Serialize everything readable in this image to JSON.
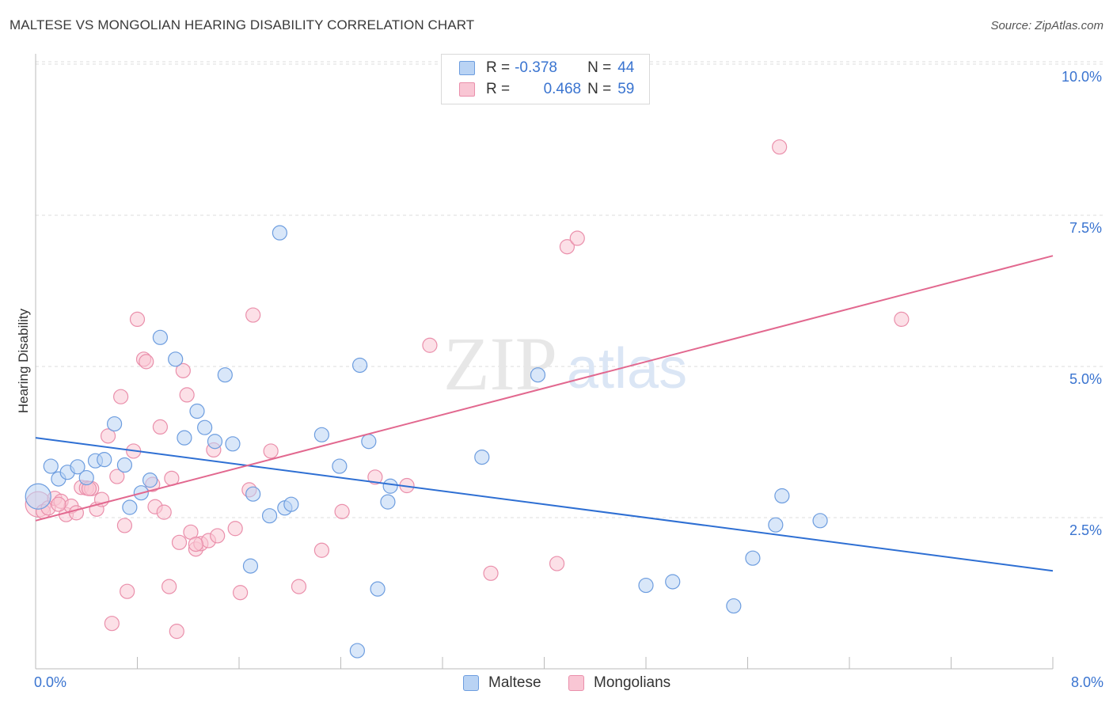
{
  "header": {
    "title": "MALTESE VS MONGOLIAN HEARING DISABILITY CORRELATION CHART",
    "source": "Source: ZipAtlas.com"
  },
  "watermark": {
    "zip": "ZIP",
    "atlas": "atlas"
  },
  "legend_top": {
    "rows": [
      {
        "r_label": "R =",
        "r_value": "-0.378",
        "n_label": "N =",
        "n_value": "44"
      },
      {
        "r_label": "R =",
        "r_value": "0.468",
        "n_label": "N =",
        "n_value": "59"
      }
    ]
  },
  "legend_bottom": {
    "items": [
      "Maltese",
      "Mongolians"
    ]
  },
  "axis_labels": {
    "x_min": "0.0%",
    "x_max": "8.0%",
    "ylabel": "Hearing Disability"
  },
  "yticks": [
    "2.5%",
    "5.0%",
    "7.5%",
    "10.0%"
  ],
  "colors": {
    "blue_fill": "#b9d3f4",
    "blue_stroke": "#6d9ddf",
    "blue_line": "#2e6fd3",
    "pink_fill": "#f9c6d4",
    "pink_stroke": "#ea8fab",
    "pink_line": "#e2688f",
    "tick_text": "#3a74d0",
    "grid": "#dddddd"
  },
  "chart_data": {
    "type": "scatter",
    "title": "MALTESE VS MONGOLIAN HEARING DISABILITY CORRELATION CHART",
    "xlabel": "",
    "ylabel": "Hearing Disability",
    "xlim": [
      0,
      8
    ],
    "ylim": [
      0,
      10.2
    ],
    "y_ticks": [
      2.5,
      5.0,
      7.5,
      10.0
    ],
    "grid": true,
    "legend": "top-center",
    "series": [
      {
        "name": "Maltese",
        "color": "#6d9ddf",
        "r": -0.378,
        "n": 44,
        "trend": {
          "x": [
            0,
            8
          ],
          "y": [
            3.82,
            1.62
          ]
        },
        "points": [
          [
            0.02,
            2.85
          ],
          [
            0.12,
            3.35
          ],
          [
            0.18,
            3.14
          ],
          [
            0.25,
            3.25
          ],
          [
            0.33,
            3.34
          ],
          [
            0.4,
            3.16
          ],
          [
            0.47,
            3.44
          ],
          [
            0.54,
            3.46
          ],
          [
            0.62,
            4.05
          ],
          [
            0.7,
            3.37
          ],
          [
            0.74,
            2.67
          ],
          [
            0.83,
            2.91
          ],
          [
            0.9,
            3.12
          ],
          [
            0.98,
            5.48
          ],
          [
            1.1,
            5.12
          ],
          [
            1.17,
            3.82
          ],
          [
            1.27,
            4.26
          ],
          [
            1.33,
            3.99
          ],
          [
            1.41,
            3.76
          ],
          [
            1.49,
            4.86
          ],
          [
            1.55,
            3.72
          ],
          [
            1.69,
            1.7
          ],
          [
            1.71,
            2.89
          ],
          [
            1.84,
            2.53
          ],
          [
            1.92,
            7.21
          ],
          [
            1.96,
            2.66
          ],
          [
            2.01,
            2.72
          ],
          [
            2.25,
            3.87
          ],
          [
            2.39,
            3.35
          ],
          [
            2.53,
            0.3
          ],
          [
            2.55,
            5.02
          ],
          [
            2.62,
            3.76
          ],
          [
            2.69,
            1.32
          ],
          [
            2.77,
            2.76
          ],
          [
            2.79,
            3.02
          ],
          [
            3.95,
            4.86
          ],
          [
            3.51,
            3.5
          ],
          [
            4.8,
            1.38
          ],
          [
            5.01,
            1.44
          ],
          [
            5.49,
            1.04
          ],
          [
            5.64,
            1.83
          ],
          [
            5.82,
            2.38
          ],
          [
            5.87,
            2.86
          ],
          [
            6.17,
            2.45
          ]
        ]
      },
      {
        "name": "Mongolians",
        "color": "#ea8fab",
        "r": 0.468,
        "n": 59,
        "trend": {
          "x": [
            0,
            8
          ],
          "y": [
            2.45,
            6.83
          ]
        },
        "points": [
          [
            0.02,
            2.72
          ],
          [
            0.06,
            2.6
          ],
          [
            0.1,
            2.66
          ],
          [
            0.15,
            2.82
          ],
          [
            0.2,
            2.77
          ],
          [
            0.24,
            2.55
          ],
          [
            0.28,
            2.69
          ],
          [
            0.32,
            2.58
          ],
          [
            0.36,
            3.0
          ],
          [
            0.4,
            2.99
          ],
          [
            0.44,
            2.98
          ],
          [
            0.48,
            2.64
          ],
          [
            0.52,
            2.8
          ],
          [
            0.57,
            3.85
          ],
          [
            0.6,
            0.75
          ],
          [
            0.64,
            3.18
          ],
          [
            0.67,
            4.5
          ],
          [
            0.7,
            2.37
          ],
          [
            0.72,
            1.28
          ],
          [
            0.77,
            3.6
          ],
          [
            0.8,
            5.78
          ],
          [
            0.85,
            5.12
          ],
          [
            0.87,
            5.08
          ],
          [
            0.92,
            3.05
          ],
          [
            0.94,
            2.68
          ],
          [
            0.98,
            4.0
          ],
          [
            1.01,
            2.59
          ],
          [
            1.05,
            1.36
          ],
          [
            1.07,
            3.15
          ],
          [
            1.11,
            0.62
          ],
          [
            1.13,
            2.09
          ],
          [
            1.16,
            4.93
          ],
          [
            1.19,
            4.53
          ],
          [
            1.22,
            2.26
          ],
          [
            1.26,
            1.98
          ],
          [
            1.3,
            2.07
          ],
          [
            1.36,
            2.12
          ],
          [
            1.4,
            3.62
          ],
          [
            1.43,
            2.2
          ],
          [
            1.57,
            2.32
          ],
          [
            1.61,
            1.26
          ],
          [
            1.68,
            2.96
          ],
          [
            1.71,
            5.85
          ],
          [
            1.85,
            3.6
          ],
          [
            2.07,
            1.36
          ],
          [
            2.25,
            1.96
          ],
          [
            2.41,
            2.6
          ],
          [
            2.67,
            3.17
          ],
          [
            2.92,
            3.03
          ],
          [
            3.1,
            5.35
          ],
          [
            3.58,
            1.58
          ],
          [
            4.1,
            1.74
          ],
          [
            4.18,
            6.98
          ],
          [
            4.26,
            7.12
          ],
          [
            5.85,
            8.63
          ],
          [
            6.81,
            5.78
          ],
          [
            1.26,
            2.06
          ],
          [
            0.42,
            2.98
          ],
          [
            0.18,
            2.72
          ]
        ]
      }
    ]
  }
}
